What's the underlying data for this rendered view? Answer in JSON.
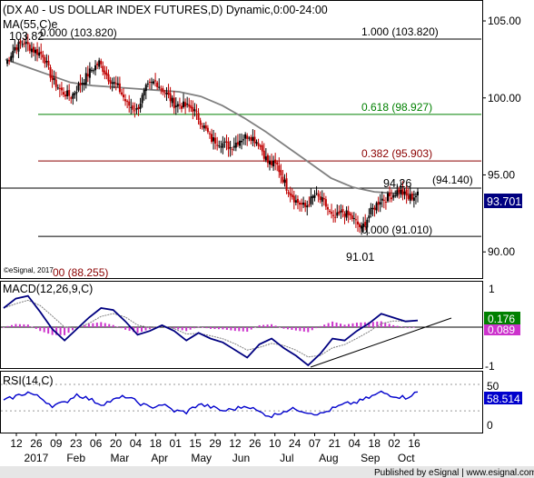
{
  "header": {
    "title": "(DX A0 - US DOLLAR INDEX FUTURES,D) Dynamic,0:00-24:00",
    "ma_label": "MA(55,C)e"
  },
  "price_panel": {
    "high_label": "103.82",
    "low_label": "91.01",
    "swing_label": "94.26",
    "last_price": "93.701",
    "watermark": "©eSignal, 2017",
    "ylim": [
      88.3,
      106.3
    ],
    "y_ticks": [
      {
        "value": 105,
        "label": "105.00"
      },
      {
        "value": 100,
        "label": "100.00"
      },
      {
        "value": 95,
        "label": "95.00"
      },
      {
        "value": 90,
        "label": "90.00"
      }
    ],
    "fib_levels": [
      {
        "value": 103.82,
        "label_left": "0.000 (103.820)",
        "label_right": "1.000 (103.820)",
        "color": "#000000"
      },
      {
        "value": 98.927,
        "label_right": "0.618 (98.927)",
        "color": "#008000"
      },
      {
        "value": 95.903,
        "label_right": "0.382 (95.903)",
        "color": "#8b0000"
      },
      {
        "value": 94.14,
        "label_right": "(94.140)",
        "color": "#000000"
      },
      {
        "value": 91.01,
        "label_right": "0.000 (91.010)",
        "color": "#000000"
      },
      {
        "value": 88.255,
        "label_left": "00 (88.255)",
        "color": "#8b0000"
      }
    ]
  },
  "macd_panel": {
    "label": "MACD(12,26,9,C)",
    "value_label": "0.176",
    "signal_label": "0.089",
    "y_tick_top": "1",
    "y_tick_bottom": "-1"
  },
  "rsi_panel": {
    "label": "RSI(14,C)",
    "value_label": "58.514",
    "y_tick_top": "50",
    "y_tick_bottom": "0"
  },
  "x_axis": {
    "day_labels": [
      "12",
      "26",
      "09",
      "23",
      "06",
      "20",
      "04",
      "18",
      "01",
      "15",
      "29",
      "12",
      "26",
      "10",
      "24",
      "07",
      "21",
      "04",
      "18",
      "02",
      "16"
    ],
    "month_labels": [
      {
        "label": "2017",
        "index": 1
      },
      {
        "label": "Feb",
        "index": 3
      },
      {
        "label": "Mar",
        "index": 5.2
      },
      {
        "label": "Apr",
        "index": 7.2
      },
      {
        "label": "May",
        "index": 9.3
      },
      {
        "label": "Jun",
        "index": 11.3
      },
      {
        "label": "Jul",
        "index": 13.6
      },
      {
        "label": "Aug",
        "index": 15.7
      },
      {
        "label": "Sep",
        "index": 17.8
      },
      {
        "label": "Oct",
        "index": 19.6
      }
    ]
  },
  "footer": "Published by eSignal | www.esignal.com",
  "colors": {
    "up": "#000000",
    "down": "#c00000",
    "ma": "#808080",
    "macd": "#000080",
    "signal": "#808080",
    "histogram": "#cc33cc",
    "rsi": "#0000cc",
    "last_price_bg": "#000080",
    "macd_badge": "#008000",
    "signal_badge": "#cc33cc",
    "rsi_badge": "#0000cc"
  },
  "chart_data": {
    "type": "candlestick",
    "series": [
      {
        "name": "MA(55,C)e",
        "type": "line"
      },
      {
        "name": "MACD(12,26,9,C)",
        "type": "line"
      },
      {
        "name": "RSI(14,C)",
        "type": "line"
      }
    ],
    "weekly_close_path": [
      102.2,
      103.3,
      103.6,
      103.1,
      102.8,
      101.2,
      100.4,
      100.1,
      100.9,
      101.7,
      102.3,
      101.3,
      100.7,
      99.6,
      99.2,
      100.6,
      101.1,
      100.4,
      99.6,
      99.5,
      99.3,
      98.3,
      97.3,
      97.1,
      96.8,
      97.3,
      97.6,
      97.1,
      95.8,
      95.6,
      94.2,
      93.3,
      92.9,
      93.7,
      93.2,
      92.1,
      92.6,
      92.2,
      91.5,
      92.6,
      93.4,
      93.6,
      94.0,
      93.5,
      93.7
    ],
    "ma_path": [
      102.5,
      102.0,
      101.5,
      101.0,
      100.8,
      100.7,
      100.6,
      100.5,
      100.4,
      100.1,
      99.5,
      98.7,
      97.8,
      96.8,
      95.8,
      94.8,
      94.2,
      93.9,
      93.8,
      93.7
    ],
    "macd_path": [
      0.5,
      0.75,
      0.82,
      0.4,
      -0.05,
      -0.35,
      -0.05,
      0.25,
      0.5,
      0.45,
      0.15,
      -0.2,
      -0.1,
      0.05,
      -0.1,
      -0.35,
      -0.15,
      -0.3,
      -0.4,
      -0.6,
      -0.8,
      -0.45,
      -0.3,
      -0.55,
      -0.75,
      -1.0,
      -0.7,
      -0.3,
      -0.35,
      -0.1,
      0.1,
      0.35,
      0.25,
      0.15,
      0.176
    ],
    "rsi_path": [
      45,
      52,
      58,
      50,
      38,
      42,
      55,
      48,
      40,
      46,
      52,
      43,
      35,
      40,
      30,
      28,
      40,
      36,
      30,
      33,
      38,
      28,
      22,
      30,
      33,
      28,
      25,
      33,
      40,
      43,
      50,
      58,
      53,
      50,
      58.514
    ]
  }
}
